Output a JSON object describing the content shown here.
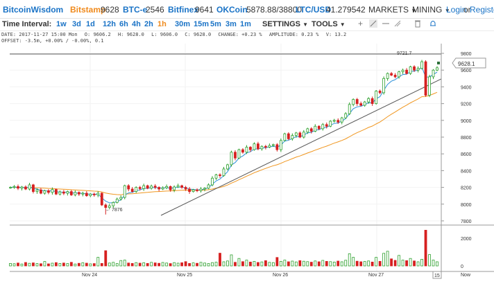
{
  "header": {
    "brand": "BitcoinWisdom",
    "tickers": [
      {
        "name": "Bitstamp",
        "value": "9628",
        "color": "#f08a1c"
      },
      {
        "name": "BTC-e",
        "value": "2546",
        "color": "#1a73c6"
      },
      {
        "name": "Bitfinex",
        "value": "9641",
        "color": "#1a73c6"
      },
      {
        "name": "OKCoin",
        "value": "5878.88/38800",
        "color": "#1a73c6"
      },
      {
        "name": "LTC/USD",
        "value": "41.279542",
        "color": "#1a73c6"
      }
    ],
    "menus": [
      "MARKETS",
      "MINING"
    ],
    "login": "Login",
    "or": "or",
    "register": "Register"
  },
  "toolbar": {
    "label": "Time Interval:",
    "intervals": [
      "1w",
      "3d",
      "1d",
      "12h",
      "6h",
      "4h",
      "2h",
      "1h",
      "30m",
      "15m",
      "5m",
      "3m",
      "1m"
    ],
    "selected_interval": "1h",
    "settings": "SETTINGS",
    "tools": "TOOLS"
  },
  "info": {
    "date": "DATE: 2017-11-27 15:00 Mon",
    "open": "O: 9606.2",
    "high": "H: 9628.0",
    "low": "L: 9606.0",
    "close": "C: 9628.0",
    "change": "CHANGE: +0.23 %",
    "amplitude": "AMPLITUDE: 0.23 %",
    "volume": "V: 13.2",
    "offset": "OFFSET: -3.5m, +0.00% / -0.00%, 0.1"
  },
  "chart": {
    "current_price": "9628.1",
    "high_label": "9721.7",
    "low_label": "7876",
    "price_ticks": [
      "9800",
      "9600",
      "9400",
      "9200",
      "9000",
      "8800",
      "8600",
      "8400",
      "8200",
      "8000",
      "7800"
    ],
    "volume_ticks": [
      "2000",
      "0"
    ],
    "x_labels": [
      "Nov 24",
      "Nov 25",
      "Nov 26",
      "Nov 27"
    ],
    "scroll_box": "15",
    "now": "Now",
    "up_color": "#2ea02e",
    "down_color": "#d62020",
    "ema_fast_color": "#2a8fd8",
    "ema_slow_color": "#f0961e"
  },
  "chart_data": {
    "type": "candlestick",
    "ylim": [
      7750,
      9850
    ],
    "y_ticks": [
      7800,
      8000,
      8200,
      8400,
      8600,
      8800,
      9000,
      9200,
      9400,
      9600,
      9800
    ],
    "volume_ylim": [
      0,
      2600
    ],
    "current_price": 9628.1,
    "period_high": 9721.7,
    "period_low": 7876,
    "closes": [
      8200,
      8210,
      8190,
      8205,
      8180,
      8230,
      8150,
      8170,
      8130,
      8160,
      8140,
      8175,
      8120,
      8145,
      8130,
      8150,
      8110,
      8140,
      8120,
      8130,
      8100,
      8120,
      8110,
      8130,
      7990,
      7960,
      7980,
      8020,
      8060,
      8080,
      8220,
      8180,
      8150,
      8200,
      8185,
      8220,
      8190,
      8215,
      8200,
      8180,
      8195,
      8210,
      8170,
      8205,
      8220,
      8200,
      8180,
      8150,
      8170,
      8160,
      8180,
      8190,
      8230,
      8310,
      8350,
      8340,
      8420,
      8470,
      8620,
      8550,
      8650,
      8620,
      8680,
      8650,
      8720,
      8660,
      8690,
      8680,
      8700,
      8710,
      8650,
      8760,
      8840,
      8780,
      8820,
      8850,
      8800,
      8860,
      8900,
      8870,
      8930,
      8900,
      8950,
      8930,
      8990,
      9000,
      8980,
      9030,
      9080,
      9190,
      9250,
      9200,
      9180,
      9220,
      9260,
      9200,
      9350,
      9330,
      9500,
      9560,
      9540,
      9520,
      9580,
      9600,
      9560,
      9640,
      9600,
      9620,
      9700,
      9300,
      9520,
      9600,
      9628
    ],
    "volumes": [
      180,
      160,
      210,
      140,
      250,
      190,
      220,
      170,
      160,
      320,
      150,
      200,
      240,
      180,
      210,
      170,
      260,
      140,
      190,
      230,
      200,
      150,
      170,
      620,
      180,
      1100,
      210,
      260,
      170,
      390,
      420,
      210,
      180,
      240,
      200,
      230,
      180,
      260,
      220,
      190,
      250,
      210,
      170,
      240,
      200,
      230,
      310,
      180,
      220,
      190,
      260,
      210,
      170,
      240,
      270,
      920,
      300,
      360,
      800,
      260,
      540,
      310,
      420,
      280,
      330,
      250,
      290,
      380,
      260,
      240,
      610,
      330,
      420,
      300,
      350,
      290,
      380,
      340,
      310,
      270,
      360,
      300,
      400,
      330,
      310,
      280,
      350,
      300,
      410,
      880,
      620,
      340,
      300,
      320,
      360,
      280,
      620,
      330,
      910,
      1060,
      510,
      400,
      760,
      420,
      380,
      540,
      360,
      300,
      480,
      2580,
      820,
      420,
      300
    ]
  }
}
